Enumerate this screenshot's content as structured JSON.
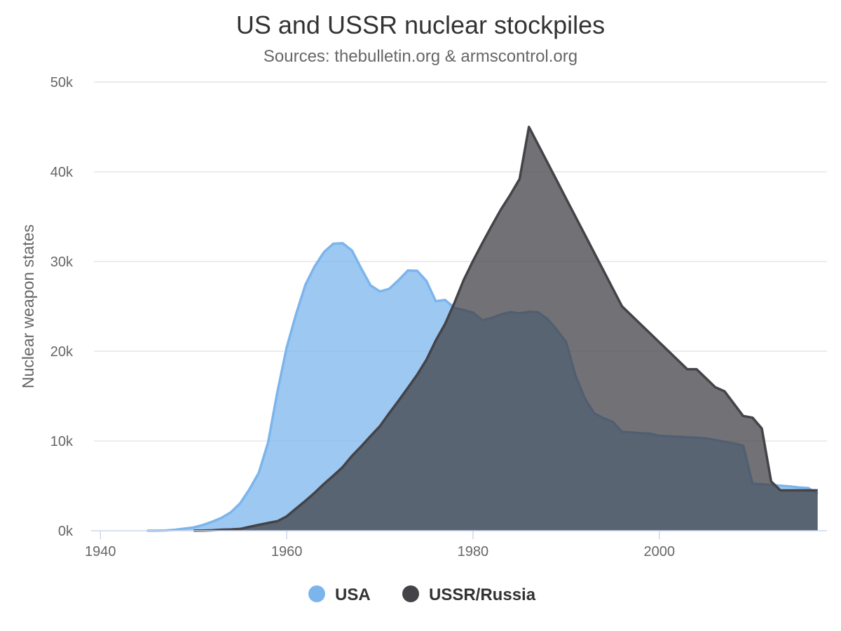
{
  "chart_data": {
    "type": "area",
    "title": "US and USSR nuclear stockpiles",
    "subtitle": "Sources: thebulletin.org  & armscontrol.org",
    "xlabel": "",
    "ylabel": "Nuclear weapon states",
    "xlim": [
      1939,
      2018
    ],
    "ylim": [
      0,
      50000
    ],
    "x_ticks": [
      1940,
      1960,
      1980,
      2000
    ],
    "y_ticks": [
      0,
      10000,
      20000,
      30000,
      40000,
      50000
    ],
    "x_tick_labels": [
      "1940",
      "1960",
      "1980",
      "2000"
    ],
    "y_tick_labels": [
      "0k",
      "10k",
      "20k",
      "30k",
      "40k",
      "50k"
    ],
    "grid": true,
    "legend_position": "bottom-center",
    "series": [
      {
        "name": "USA",
        "color": "#7cb5ec",
        "x": [
          1945,
          1946,
          1947,
          1948,
          1949,
          1950,
          1951,
          1952,
          1953,
          1954,
          1955,
          1956,
          1957,
          1958,
          1959,
          1960,
          1961,
          1962,
          1963,
          1964,
          1965,
          1966,
          1967,
          1968,
          1969,
          1970,
          1971,
          1972,
          1973,
          1974,
          1975,
          1976,
          1977,
          1978,
          1979,
          1980,
          1981,
          1982,
          1983,
          1984,
          1985,
          1986,
          1987,
          1988,
          1989,
          1990,
          1991,
          1992,
          1993,
          1994,
          1995,
          1996,
          1997,
          1998,
          1999,
          2000,
          2001,
          2002,
          2003,
          2004,
          2005,
          2006,
          2007,
          2008,
          2009,
          2010,
          2011,
          2012,
          2013,
          2014,
          2015,
          2016,
          2017
        ],
        "values": [
          6,
          11,
          32,
          110,
          235,
          369,
          640,
          1005,
          1436,
          2063,
          3057,
          4618,
          6444,
          9822,
          15468,
          20434,
          24126,
          27387,
          29459,
          31056,
          31982,
          32040,
          31233,
          29224,
          27342,
          26662,
          26956,
          27912,
          28999,
          28965,
          27826,
          25579,
          25722,
          24826,
          24605,
          24304,
          23464,
          23708,
          24099,
          24357,
          24237,
          24401,
          24344,
          23586,
          22380,
          21004,
          17287,
          14747,
          13076,
          12555,
          12144,
          11009,
          10953,
          10871,
          10824,
          10577,
          10527,
          10475,
          10421,
          10358,
          10295,
          10104,
          9914,
          9720,
          9487,
          5238,
          5172,
          5113,
          5022,
          4940,
          4826,
          4755,
          4105
        ]
      },
      {
        "name": "USSR/Russia",
        "color": "#434348",
        "x": [
          1950,
          1951,
          1952,
          1953,
          1954,
          1955,
          1956,
          1957,
          1958,
          1959,
          1960,
          1961,
          1962,
          1963,
          1964,
          1965,
          1966,
          1967,
          1968,
          1969,
          1970,
          1971,
          1972,
          1973,
          1974,
          1975,
          1976,
          1977,
          1978,
          1979,
          1980,
          1981,
          1982,
          1983,
          1984,
          1985,
          1986,
          1987,
          1988,
          1989,
          1990,
          1991,
          1992,
          1993,
          1994,
          1995,
          1996,
          1997,
          1998,
          1999,
          2000,
          2001,
          2002,
          2003,
          2004,
          2005,
          2006,
          2007,
          2008,
          2009,
          2010,
          2011,
          2012,
          2013,
          2014,
          2015,
          2016,
          2017
        ],
        "values": [
          5,
          25,
          50,
          120,
          150,
          200,
          426,
          660,
          869,
          1060,
          1605,
          2471,
          3322,
          4238,
          5221,
          6129,
          7089,
          8339,
          9399,
          10538,
          11643,
          13092,
          14478,
          15915,
          17385,
          19055,
          21205,
          23044,
          25393,
          27935,
          30062,
          32049,
          33952,
          35804,
          37431,
          39197,
          45000,
          43000,
          41000,
          39000,
          37000,
          35000,
          33000,
          31000,
          29000,
          27000,
          25000,
          24000,
          23000,
          22000,
          21000,
          20000,
          19000,
          18000,
          18000,
          17000,
          16000,
          15537,
          14162,
          12787,
          12600,
          11400,
          5500,
          4500,
          4500,
          4500,
          4500,
          4500
        ]
      }
    ]
  }
}
